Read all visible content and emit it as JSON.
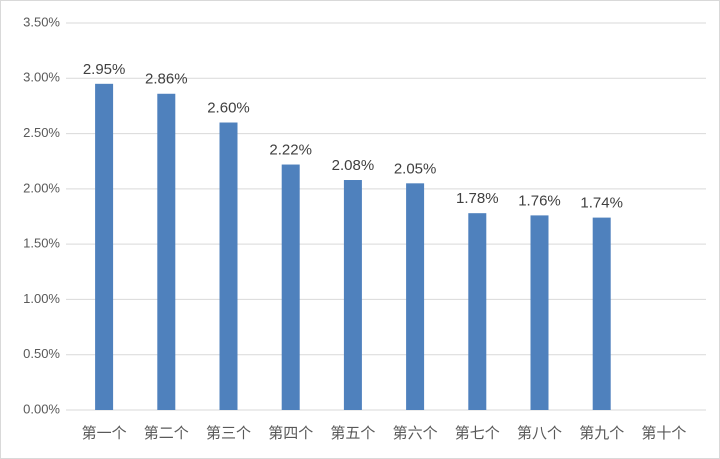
{
  "chart_data": {
    "type": "bar",
    "categories": [
      "第一个",
      "第二个",
      "第三个",
      "第四个",
      "第五个",
      "第六个",
      "第七个",
      "第八个",
      "第九个",
      "第十个"
    ],
    "values": [
      2.95,
      2.86,
      2.6,
      2.22,
      2.08,
      2.05,
      1.78,
      1.76,
      1.74,
      null
    ],
    "value_labels": [
      "2.95%",
      "2.86%",
      "2.60%",
      "2.22%",
      "2.08%",
      "2.05%",
      "1.78%",
      "1.76%",
      "1.74%",
      null
    ],
    "color": "#4f81bd",
    "ylim": [
      0,
      3.5
    ],
    "yticks": [
      {
        "value": 0,
        "label": "0.00%"
      },
      {
        "value": 0.5,
        "label": "0.50%"
      },
      {
        "value": 1,
        "label": "1.00%"
      },
      {
        "value": 1.5,
        "label": "1.50%"
      },
      {
        "value": 2,
        "label": "2.00%"
      },
      {
        "value": 2.5,
        "label": "2.50%"
      },
      {
        "value": 3,
        "label": "3.00%"
      },
      {
        "value": 3.5,
        "label": "3.50%"
      }
    ],
    "grid": true
  }
}
